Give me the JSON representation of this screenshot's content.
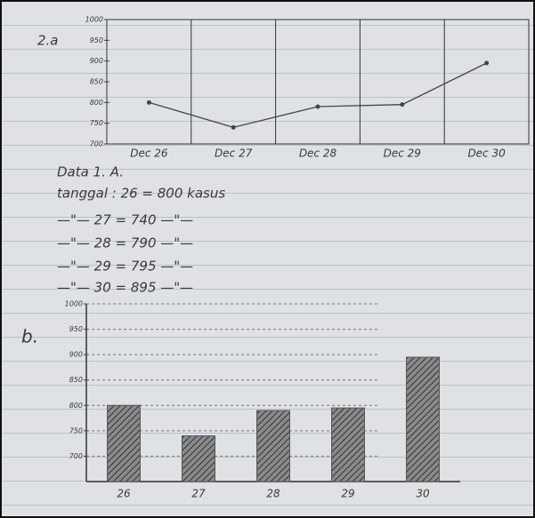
{
  "label_a": "2.a",
  "label_b": "b.",
  "chart_data": [
    {
      "type": "line",
      "categories": [
        "Dec 26",
        "Dec 27",
        "Dec 28",
        "Dec 29",
        "Dec 30"
      ],
      "values": [
        800,
        740,
        790,
        795,
        895
      ],
      "color": "#444444",
      "ylim": [
        700,
        1000
      ],
      "yticks": [
        700,
        750,
        800,
        850,
        900,
        950,
        1000
      ]
    },
    {
      "type": "bar",
      "categories": [
        "26",
        "27",
        "28",
        "29",
        "30"
      ],
      "values": [
        800,
        740,
        790,
        795,
        895
      ],
      "color": "#555555",
      "ylim": [
        650,
        1000
      ],
      "yticks": [
        700,
        750,
        800,
        850,
        900,
        950,
        1000
      ],
      "grid": true
    }
  ],
  "notes": [
    "Data   1. A.",
    "tanggal : 26 = 800   kasus",
    "—\"— 27 = 740  —\"—",
    "—\"— 28 = 790  —\"—",
    "—\"— 29 = 795  —\"—",
    "—\"— 30 = 895  —\"—"
  ]
}
